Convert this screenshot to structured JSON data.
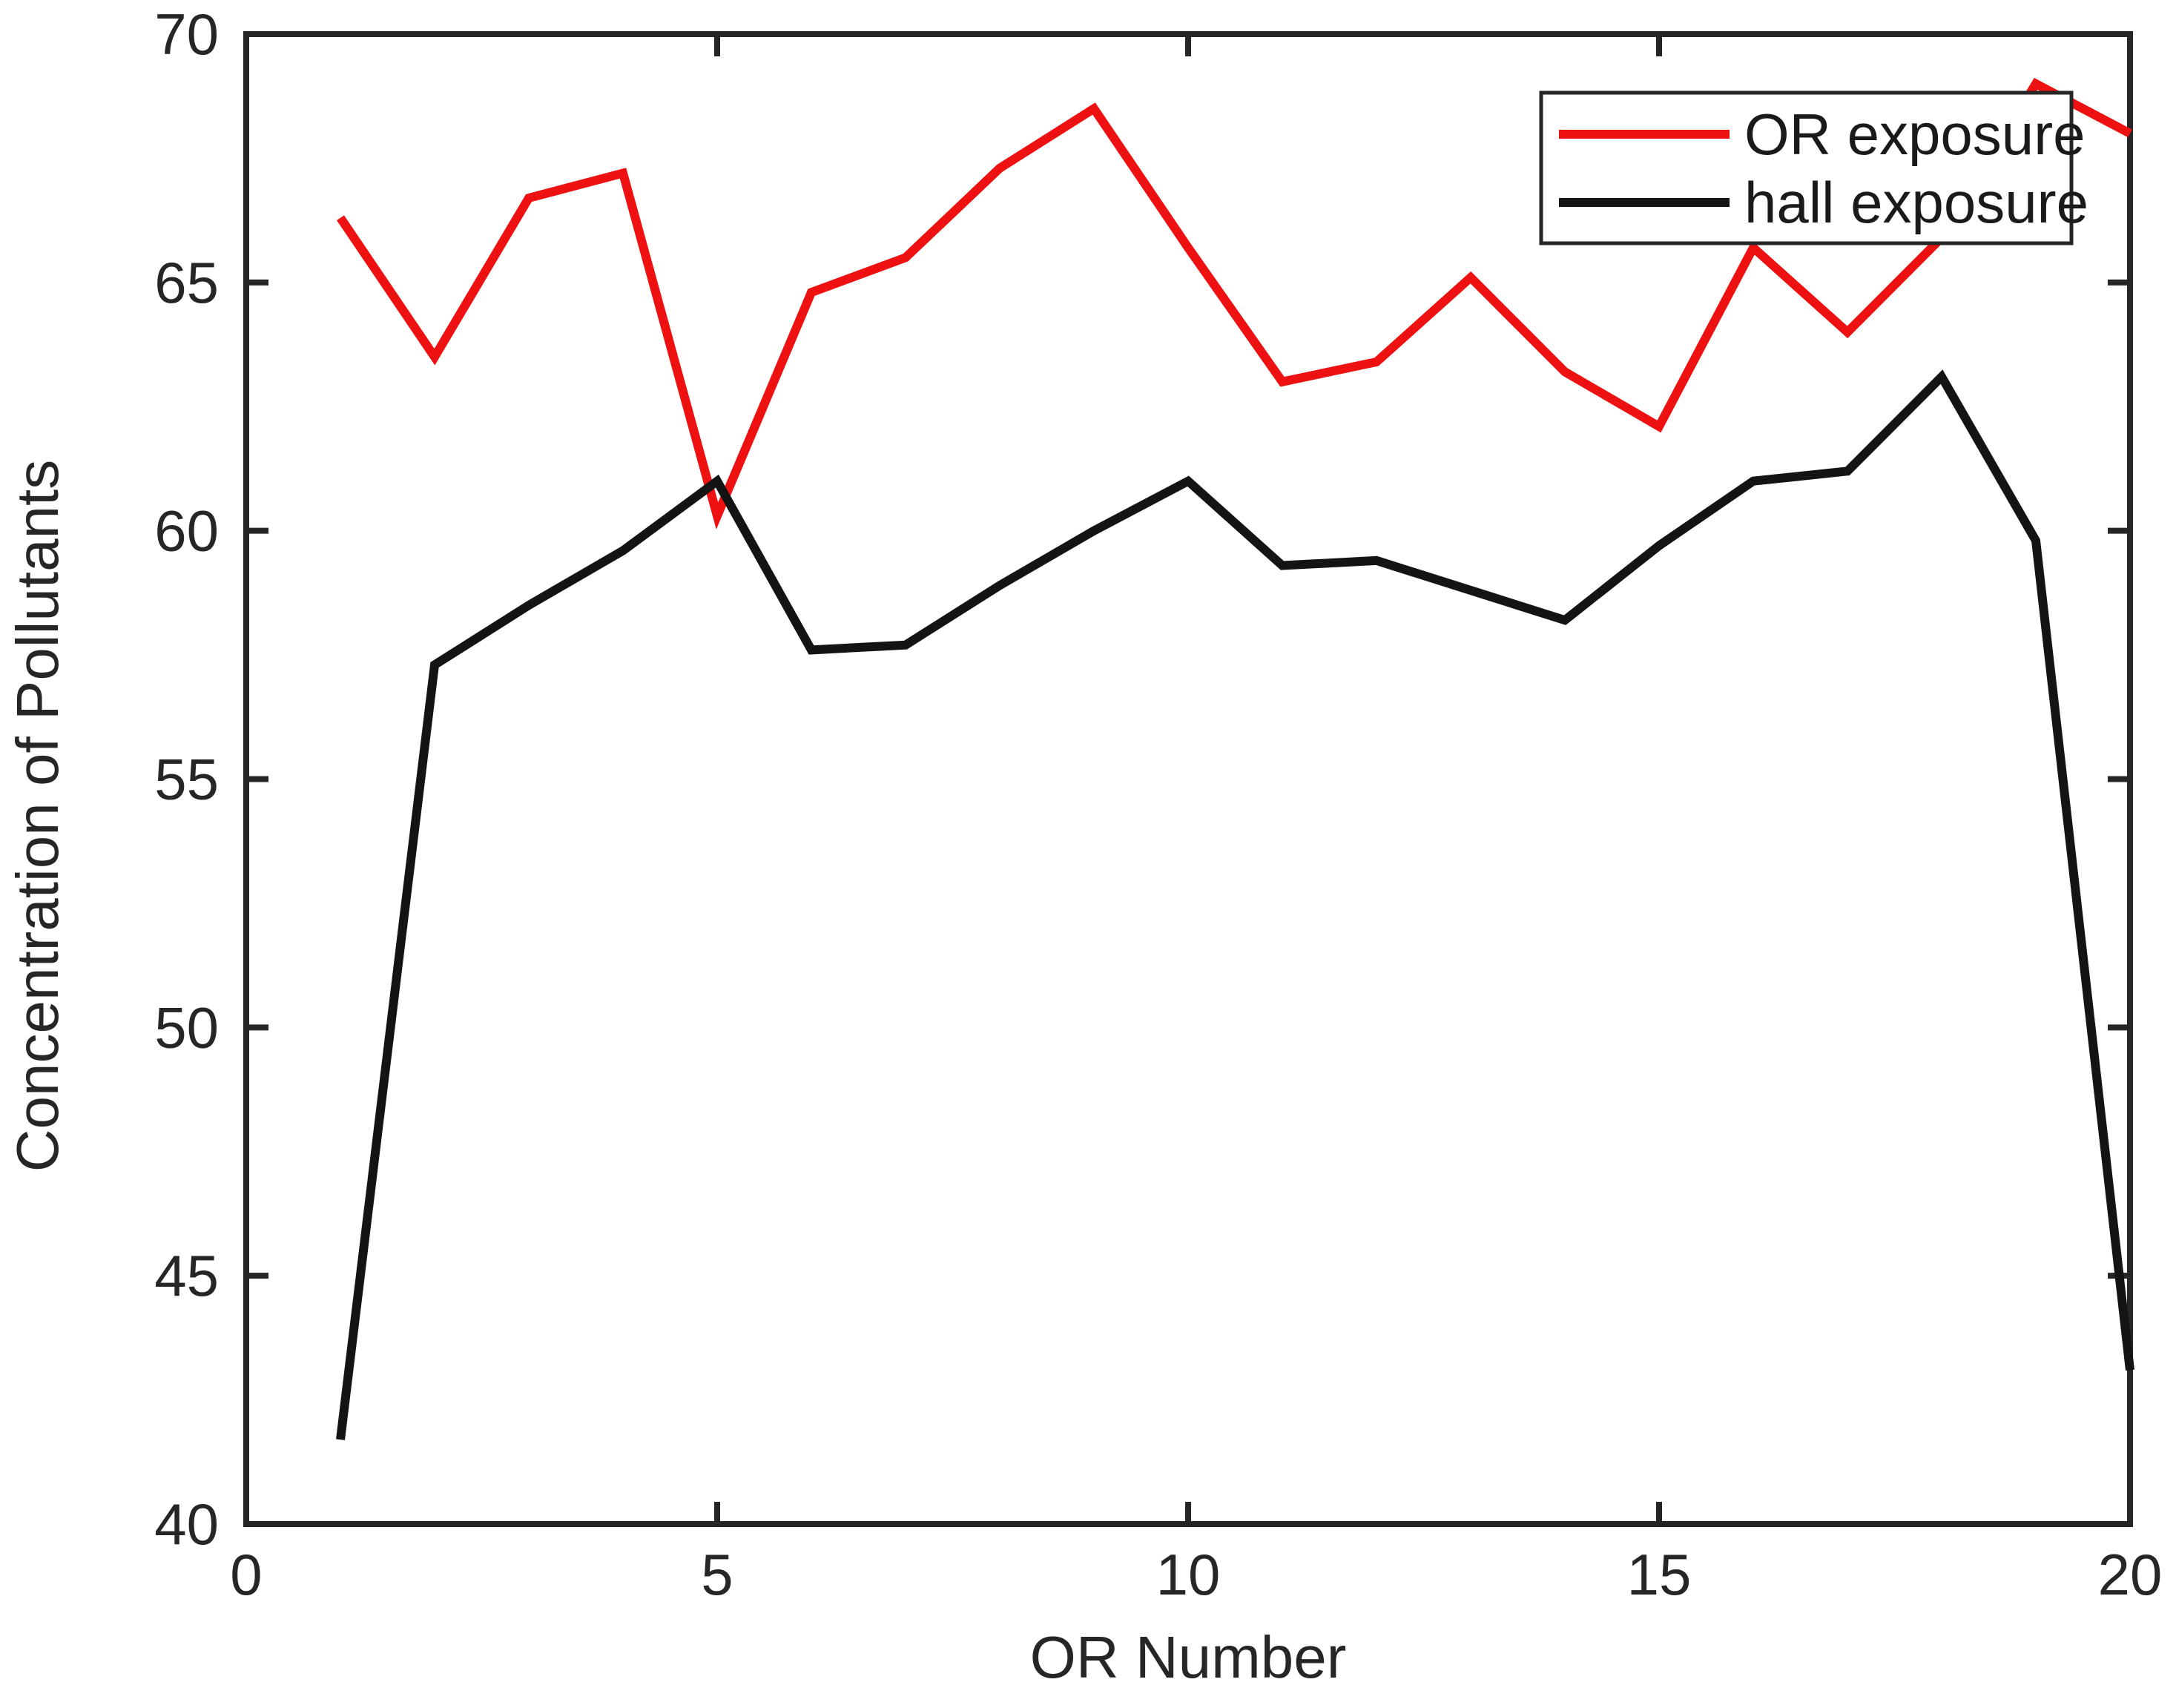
{
  "chart_data": {
    "type": "line",
    "title": "",
    "xlabel": "OR Number",
    "ylabel": "Concentration of Pollutants",
    "xlim": [
      0,
      20
    ],
    "ylim": [
      40,
      70
    ],
    "x_ticks": [
      0,
      5,
      10,
      15,
      20
    ],
    "y_ticks": [
      40,
      45,
      50,
      55,
      60,
      65,
      70
    ],
    "grid": false,
    "legend_position": "top-right",
    "x": [
      1,
      2,
      3,
      4,
      5,
      6,
      7,
      8,
      9,
      10,
      11,
      12,
      13,
      14,
      15,
      16,
      17,
      18,
      19,
      20
    ],
    "series": [
      {
        "name": "OR exposure",
        "color": "#ed1111",
        "values": [
          66.3,
          63.5,
          66.7,
          67.2,
          60.3,
          64.8,
          65.5,
          67.3,
          68.5,
          65.7,
          63.0,
          63.4,
          65.1,
          63.2,
          62.1,
          65.7,
          64.0,
          65.9,
          69.0,
          68.0
        ]
      },
      {
        "name": "hall exposure",
        "color": "#141414",
        "values": [
          41.7,
          57.3,
          58.5,
          59.6,
          61.0,
          57.6,
          57.7,
          58.9,
          60.0,
          61.0,
          59.3,
          59.4,
          58.8,
          58.2,
          59.7,
          61.0,
          61.2,
          63.1,
          59.8,
          43.1
        ]
      }
    ],
    "axis_color": "#262626",
    "background_color": "#ffffff"
  }
}
